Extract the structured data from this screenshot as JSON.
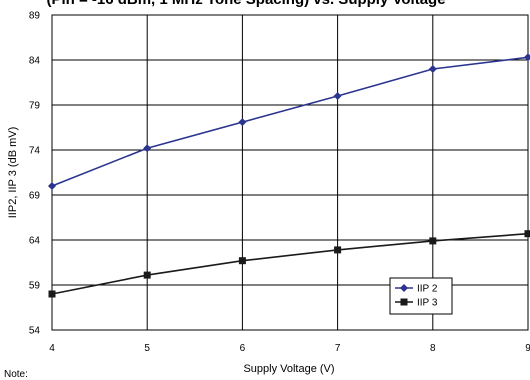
{
  "chart_data": {
    "type": "line",
    "title": "(Pin = -16 dBm, 1 MHz Tone Spacing) vs. Supply Voltage",
    "xlabel": "Supply Voltage (V)",
    "ylabel": "IIP2, IIP 3 (dB mV)",
    "xlim": [
      4,
      9
    ],
    "ylim": [
      54,
      89
    ],
    "xticks": [
      4,
      5,
      6,
      7,
      8,
      9
    ],
    "yticks": [
      54,
      59,
      64,
      69,
      74,
      79,
      84,
      89
    ],
    "grid": true,
    "legend_position": "bottom-right",
    "series": [
      {
        "name": "IIP 2",
        "color": "#2b3590",
        "marker": "diamond",
        "x": [
          4,
          5,
          6,
          7,
          8,
          9
        ],
        "y": [
          70.0,
          74.2,
          77.1,
          80.0,
          83.0,
          84.3
        ]
      },
      {
        "name": "IIP 3",
        "color": "#1a1a1a",
        "marker": "square",
        "x": [
          4,
          5,
          6,
          7,
          8,
          9
        ],
        "y": [
          58.0,
          60.1,
          61.7,
          62.9,
          63.9,
          64.7
        ]
      }
    ]
  },
  "note": "Note:"
}
